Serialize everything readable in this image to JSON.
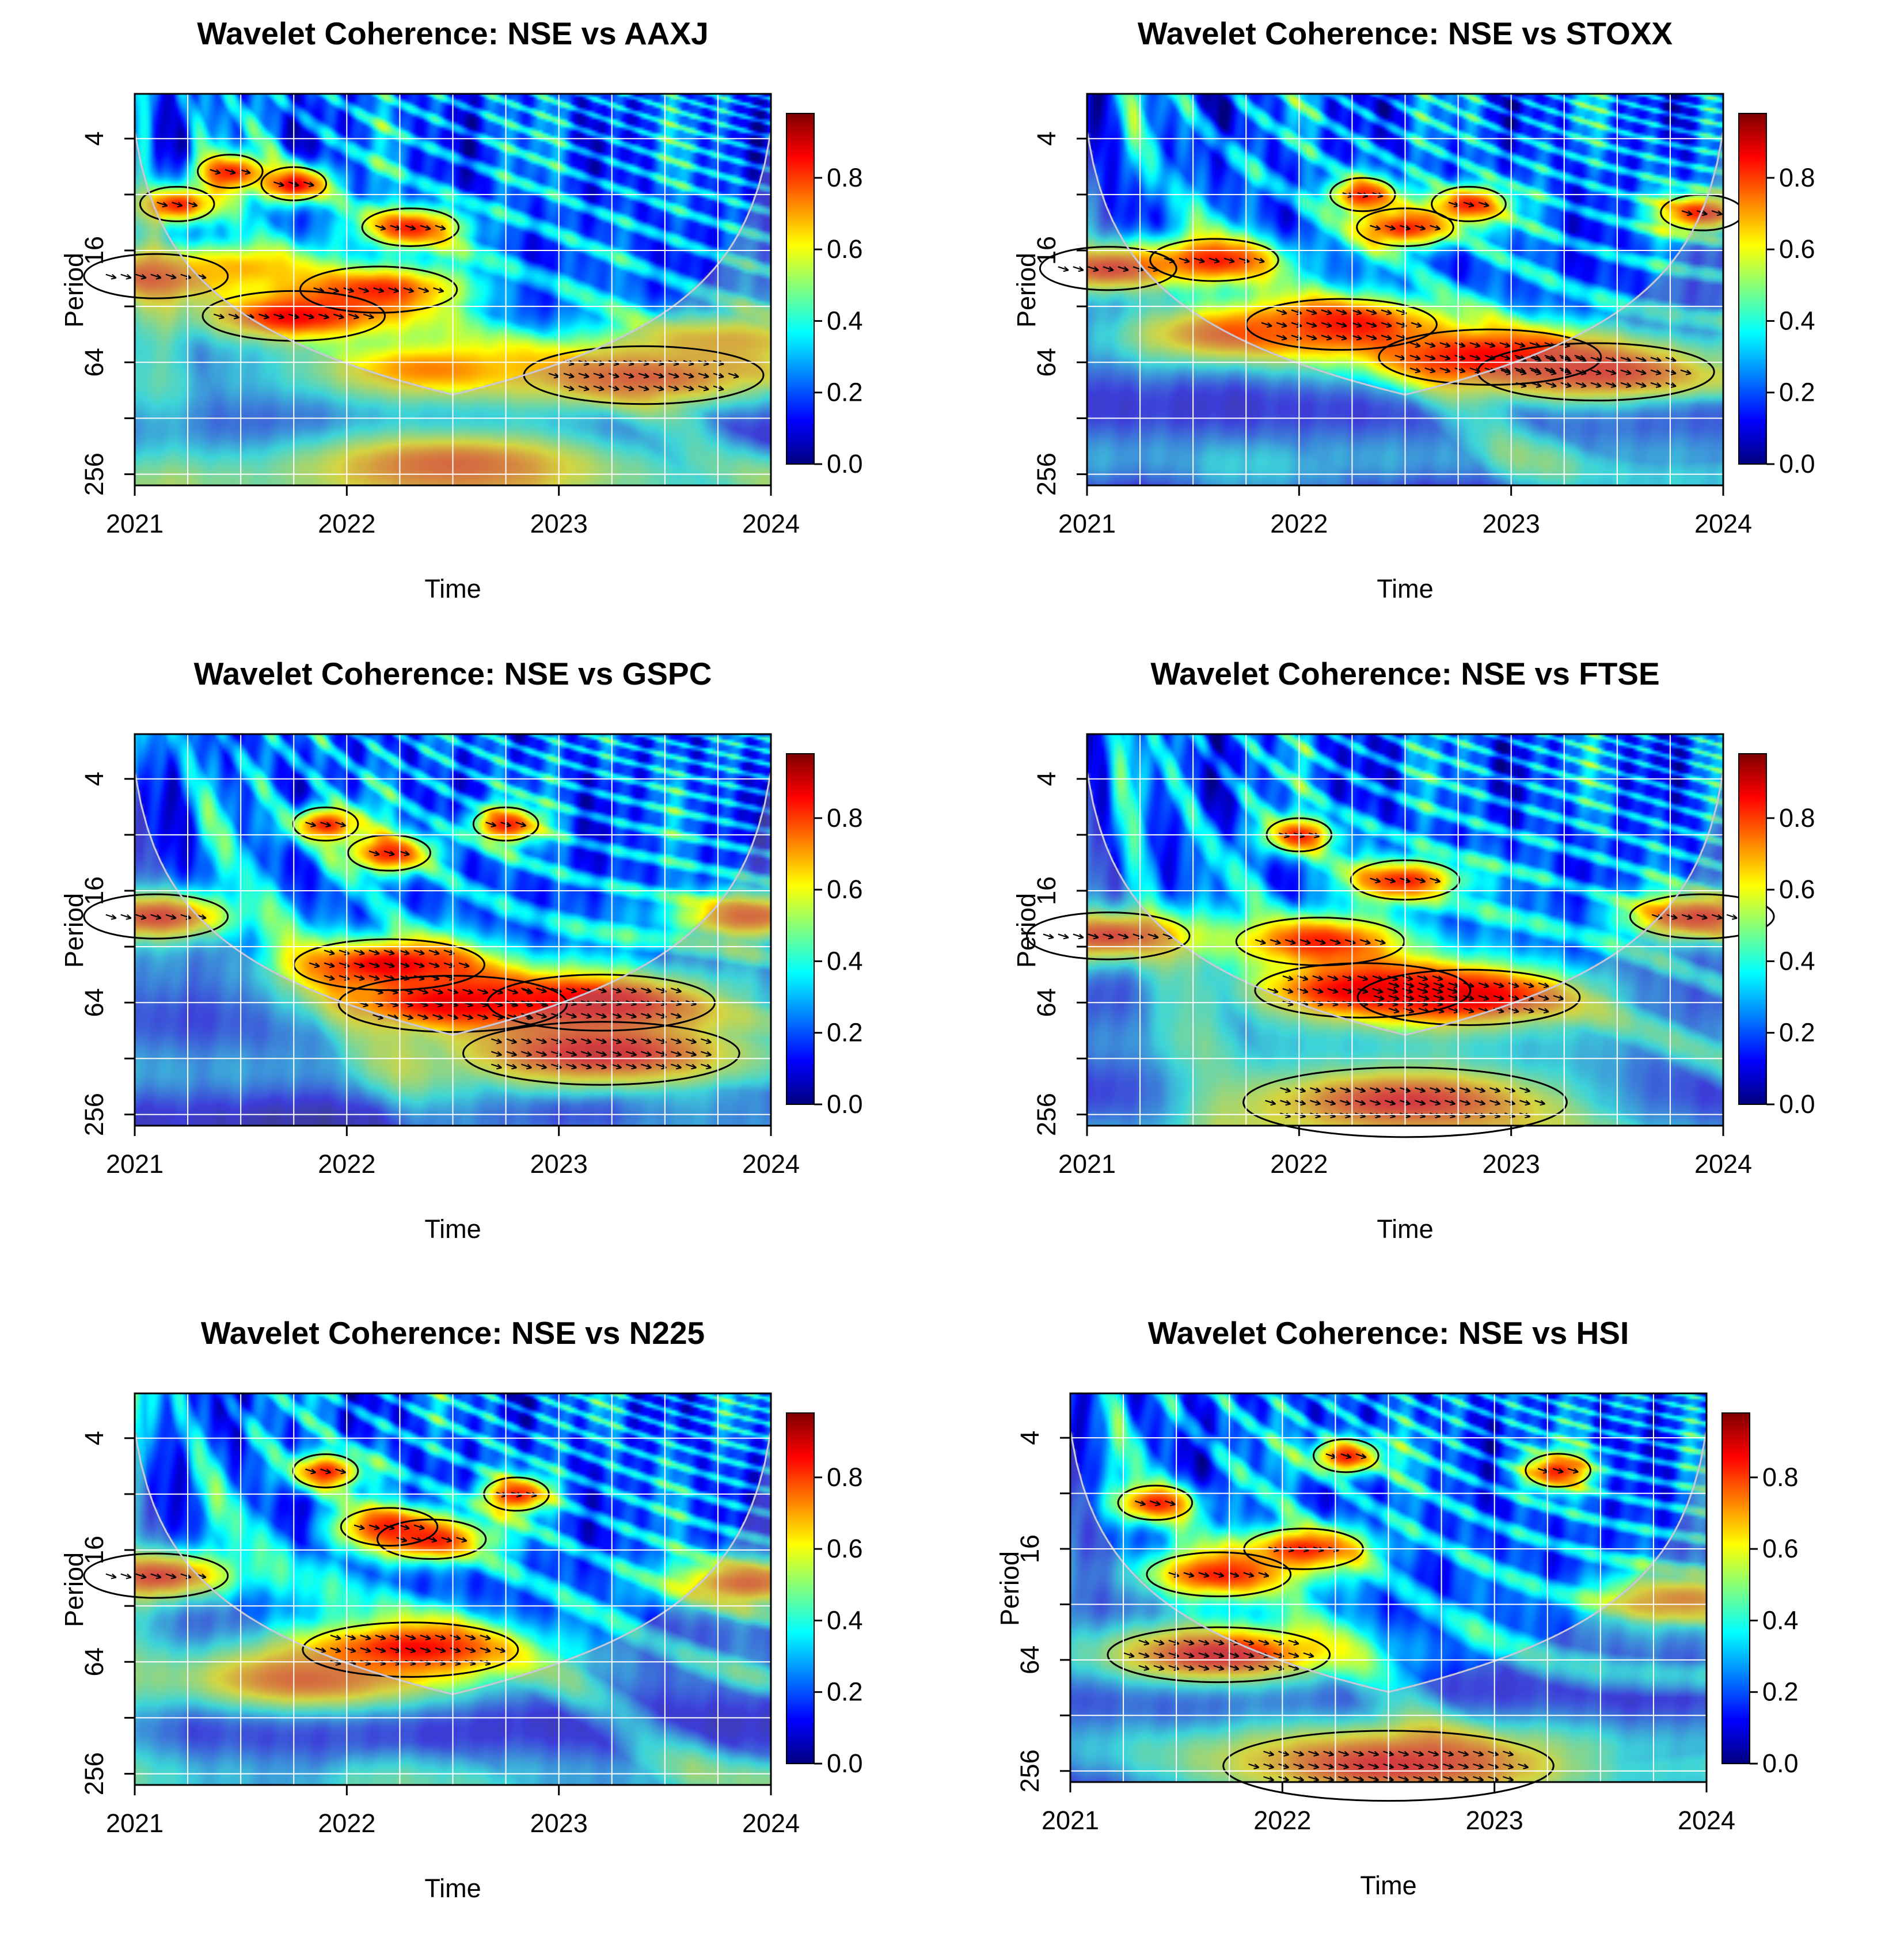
{
  "figure": {
    "colorbar_colors": [
      "#00007f",
      "#0000ff",
      "#007fff",
      "#00ffff",
      "#7fff7f",
      "#ffff00",
      "#ff7f00",
      "#ff0000",
      "#7f0000"
    ]
  },
  "chart_data": [
    {
      "type": "heatmap",
      "title": "Wavelet Coherence: NSE vs AAXJ",
      "xlabel": "Time",
      "ylabel": "Period",
      "x_ticks": [
        "2021",
        "2022",
        "2023",
        "2024"
      ],
      "y_ticks": [
        "4",
        "16",
        "64",
        "256"
      ],
      "y_scale": "log2",
      "colorbar_ticks": [
        "0.0",
        "0.2",
        "0.4",
        "0.6",
        "0.8"
      ],
      "colorbar_range": [
        0,
        1
      ],
      "grid": true,
      "regions": [
        {
          "t": 2021.1,
          "p": 22,
          "v": 0.85
        },
        {
          "t": 2021.75,
          "p": 36,
          "v": 0.9
        },
        {
          "t": 2022.15,
          "p": 26,
          "v": 0.85
        },
        {
          "t": 2023.4,
          "p": 75,
          "v": 0.85
        },
        {
          "t": 2021.2,
          "p": 9,
          "v": 0.85
        },
        {
          "t": 2021.45,
          "p": 6,
          "v": 0.85
        },
        {
          "t": 2021.75,
          "p": 7,
          "v": 0.9
        },
        {
          "t": 2022.3,
          "p": 12,
          "v": 0.85
        },
        {
          "t": 2022.4,
          "p": 70,
          "v": 0.75
        },
        {
          "t": 2021.5,
          "p": 20,
          "v": 0.7
        },
        {
          "t": 2023.8,
          "p": 50,
          "v": 0.7
        },
        {
          "t": 2022.5,
          "p": 230,
          "v": 0.8
        }
      ]
    },
    {
      "type": "heatmap",
      "title": "Wavelet Coherence: NSE vs STOXX",
      "xlabel": "Time",
      "ylabel": "Period",
      "x_ticks": [
        "2021",
        "2022",
        "2023",
        "2024"
      ],
      "y_ticks": [
        "4",
        "16",
        "64",
        "256"
      ],
      "y_scale": "log2",
      "colorbar_ticks": [
        "0.0",
        "0.2",
        "0.4",
        "0.6",
        "0.8"
      ],
      "colorbar_range": [
        0,
        1
      ],
      "grid": true,
      "regions": [
        {
          "t": 2022.2,
          "p": 40,
          "v": 0.9
        },
        {
          "t": 2022.9,
          "p": 60,
          "v": 0.9
        },
        {
          "t": 2023.4,
          "p": 72,
          "v": 0.85
        },
        {
          "t": 2021.1,
          "p": 20,
          "v": 0.85
        },
        {
          "t": 2021.6,
          "p": 18,
          "v": 0.85
        },
        {
          "t": 2022.3,
          "p": 8,
          "v": 0.85
        },
        {
          "t": 2022.5,
          "p": 12,
          "v": 0.85
        },
        {
          "t": 2022.8,
          "p": 9,
          "v": 0.85
        },
        {
          "t": 2023.9,
          "p": 10,
          "v": 0.85
        },
        {
          "t": 2021.7,
          "p": 45,
          "v": 0.8
        }
      ]
    },
    {
      "type": "heatmap",
      "title": "Wavelet Coherence: NSE vs GSPC",
      "xlabel": "Time",
      "ylabel": "Period",
      "x_ticks": [
        "2021",
        "2022",
        "2023",
        "2024"
      ],
      "y_ticks": [
        "4",
        "16",
        "64",
        "256"
      ],
      "y_scale": "log2",
      "colorbar_ticks": [
        "0.0",
        "0.2",
        "0.4",
        "0.6",
        "0.8"
      ],
      "colorbar_range": [
        0,
        1
      ],
      "grid": true,
      "regions": [
        {
          "t": 2022.2,
          "p": 40,
          "v": 0.9
        },
        {
          "t": 2022.5,
          "p": 65,
          "v": 0.9
        },
        {
          "t": 2023.2,
          "p": 64,
          "v": 0.9
        },
        {
          "t": 2023.2,
          "p": 120,
          "v": 0.9
        },
        {
          "t": 2021.1,
          "p": 22,
          "v": 0.85
        },
        {
          "t": 2022.2,
          "p": 10,
          "v": 0.85
        },
        {
          "t": 2021.9,
          "p": 7,
          "v": 0.85
        },
        {
          "t": 2022.75,
          "p": 7,
          "v": 0.85
        },
        {
          "t": 2023.9,
          "p": 22,
          "v": 0.8
        }
      ]
    },
    {
      "type": "heatmap",
      "title": "Wavelet Coherence: NSE vs FTSE",
      "xlabel": "Time",
      "ylabel": "Period",
      "x_ticks": [
        "2021",
        "2022",
        "2023",
        "2024"
      ],
      "y_ticks": [
        "4",
        "16",
        "64",
        "256"
      ],
      "y_scale": "log2",
      "colorbar_ticks": [
        "0.0",
        "0.2",
        "0.4",
        "0.6",
        "0.8"
      ],
      "colorbar_range": [
        0,
        1
      ],
      "grid": true,
      "regions": [
        {
          "t": 2022.3,
          "p": 55,
          "v": 0.9
        },
        {
          "t": 2022.8,
          "p": 60,
          "v": 0.9
        },
        {
          "t": 2022.1,
          "p": 30,
          "v": 0.85
        },
        {
          "t": 2022.5,
          "p": 220,
          "v": 0.88
        },
        {
          "t": 2021.1,
          "p": 28,
          "v": 0.85
        },
        {
          "t": 2022.0,
          "p": 8,
          "v": 0.85
        },
        {
          "t": 2022.5,
          "p": 14,
          "v": 0.85
        },
        {
          "t": 2023.9,
          "p": 22,
          "v": 0.85
        }
      ]
    },
    {
      "type": "heatmap",
      "title": "Wavelet Coherence: NSE vs N225",
      "xlabel": "Time",
      "ylabel": "Period",
      "x_ticks": [
        "2021",
        "2022",
        "2023",
        "2024"
      ],
      "y_ticks": [
        "4",
        "16",
        "64",
        "256"
      ],
      "y_scale": "log2",
      "colorbar_ticks": [
        "0.0",
        "0.2",
        "0.4",
        "0.6",
        "0.8"
      ],
      "colorbar_range": [
        0,
        1
      ],
      "grid": true,
      "regions": [
        {
          "t": 2022.3,
          "p": 55,
          "v": 0.9
        },
        {
          "t": 2021.8,
          "p": 80,
          "v": 0.8
        },
        {
          "t": 2021.1,
          "p": 22,
          "v": 0.85
        },
        {
          "t": 2022.2,
          "p": 12,
          "v": 0.85
        },
        {
          "t": 2022.4,
          "p": 14,
          "v": 0.85
        },
        {
          "t": 2021.9,
          "p": 6,
          "v": 0.85
        },
        {
          "t": 2022.8,
          "p": 8,
          "v": 0.85
        },
        {
          "t": 2023.9,
          "p": 24,
          "v": 0.8
        }
      ]
    },
    {
      "type": "heatmap",
      "title": "Wavelet Coherence: NSE vs HSI",
      "xlabel": "Time",
      "ylabel": "Period",
      "x_ticks": [
        "2021",
        "2022",
        "2023",
        "2024"
      ],
      "y_ticks": [
        "4",
        "16",
        "64",
        "256"
      ],
      "y_scale": "log2",
      "colorbar_ticks": [
        "0.0",
        "0.2",
        "0.4",
        "0.6",
        "0.8"
      ],
      "colorbar_range": [
        0,
        1
      ],
      "grid": true,
      "regions": [
        {
          "t": 2021.7,
          "p": 60,
          "v": 0.9
        },
        {
          "t": 2021.7,
          "p": 22,
          "v": 0.85
        },
        {
          "t": 2022.5,
          "p": 240,
          "v": 0.88
        },
        {
          "t": 2021.4,
          "p": 9,
          "v": 0.85
        },
        {
          "t": 2022.1,
          "p": 16,
          "v": 0.85
        },
        {
          "t": 2022.3,
          "p": 5,
          "v": 0.85
        },
        {
          "t": 2023.3,
          "p": 6,
          "v": 0.85
        },
        {
          "t": 2023.9,
          "p": 30,
          "v": 0.75
        }
      ]
    }
  ]
}
